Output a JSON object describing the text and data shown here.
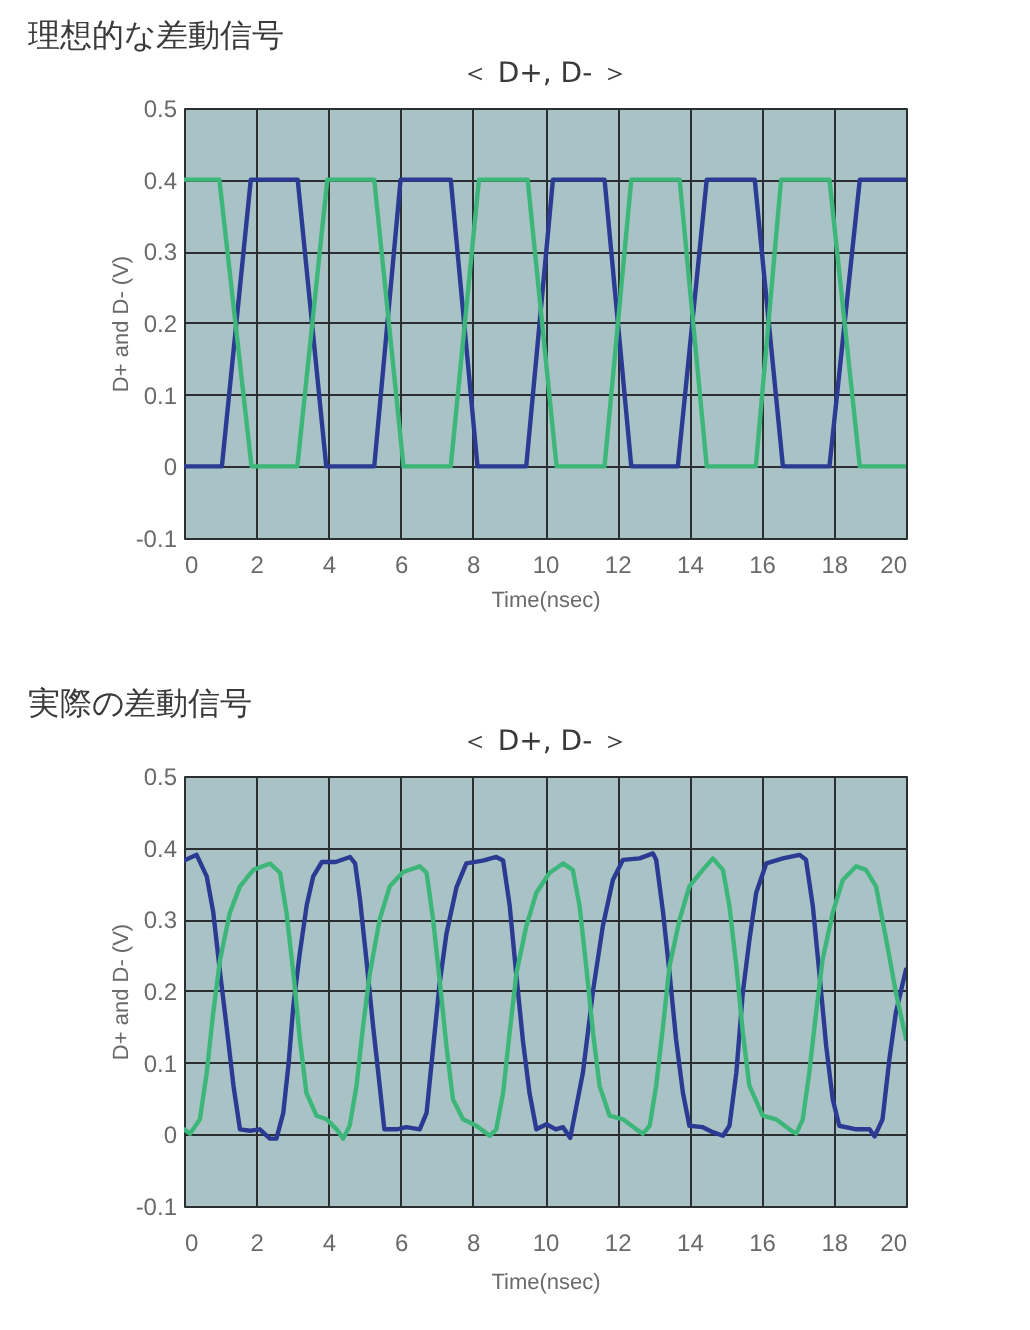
{
  "chart_data": [
    {
      "type": "line",
      "title": "理想的な差動信号",
      "subtitle": "＜ D+, D- ＞",
      "xlabel": "Time(nsec)",
      "ylabel": "D+ and D- (V)",
      "xlim": [
        0,
        20
      ],
      "xticks": [
        0,
        2,
        4,
        6,
        8,
        10,
        12,
        14,
        16,
        18,
        20
      ],
      "ylim": [
        -0.1,
        0.5
      ],
      "yticks": [
        -0.1,
        0,
        0.1,
        0.2,
        0.3,
        0.4,
        0.5
      ],
      "grid": true,
      "series": [
        {
          "color": "#2b3a92",
          "x": [
            0,
            1.05,
            1.85,
            3.15,
            3.94,
            5.27,
            6.0,
            7.39,
            8.13,
            9.48,
            10.22,
            11.65,
            12.39,
            13.68,
            14.48,
            15.81,
            16.59,
            17.88,
            18.72,
            20
          ],
          "values": [
            0,
            0,
            0.4,
            0.4,
            0,
            0,
            0.4,
            0.4,
            0,
            0,
            0.4,
            0.4,
            0,
            0,
            0.4,
            0.4,
            0,
            0,
            0.4,
            0.4
          ]
        },
        {
          "color": "#3cb679",
          "x": [
            0,
            0.98,
            1.87,
            3.14,
            3.97,
            5.27,
            6.08,
            7.39,
            8.17,
            9.52,
            10.32,
            11.65,
            12.39,
            13.73,
            14.48,
            15.84,
            16.54,
            17.88,
            18.72,
            20
          ],
          "values": [
            0.4,
            0.4,
            0,
            0,
            0.4,
            0.4,
            0,
            0,
            0.4,
            0.4,
            0,
            0,
            0.4,
            0.4,
            0,
            0,
            0.4,
            0.4,
            0,
            0
          ]
        }
      ]
    },
    {
      "type": "line",
      "title": "実際の差動信号",
      "subtitle": "＜ D+, D- ＞",
      "xlabel": "Time(nsec)",
      "ylabel": "D+ and D- (V)",
      "xlim": [
        0,
        20
      ],
      "xticks": [
        0,
        2,
        4,
        6,
        8,
        10,
        12,
        14,
        16,
        18,
        20
      ],
      "ylim": [
        -0.1,
        0.5
      ],
      "yticks": [
        -0.1,
        0,
        0.1,
        0.2,
        0.3,
        0.4,
        0.5
      ],
      "grid": true,
      "series": [
        {
          "color": "#2b3a92",
          "x": [
            0,
            0.35,
            0.63,
            0.81,
            1.0,
            1.18,
            1.37,
            1.55,
            1.83,
            2.1,
            2.38,
            2.56,
            2.75,
            2.9,
            3.03,
            3.2,
            3.4,
            3.58,
            3.82,
            4.2,
            4.6,
            4.74,
            4.87,
            5.05,
            5.24,
            5.42,
            5.55,
            5.89,
            6.16,
            6.53,
            6.72,
            6.9,
            7.08,
            7.27,
            7.55,
            7.82,
            8.28,
            8.65,
            8.84,
            9.02,
            9.2,
            9.39,
            9.57,
            9.76,
            10.04,
            10.3,
            10.5,
            10.7,
            11.05,
            11.33,
            11.6,
            11.88,
            12.16,
            12.62,
            12.99,
            13.08,
            13.27,
            13.45,
            13.63,
            13.82,
            14.0,
            14.37,
            14.65,
            14.93,
            15.11,
            15.3,
            15.48,
            15.66,
            15.85,
            16.13,
            16.59,
            17.05,
            17.23,
            17.42,
            17.6,
            17.79,
            17.97,
            18.15,
            18.62,
            18.99,
            19.13,
            19.35,
            19.54,
            19.72,
            20
          ],
          "values": [
            0.382,
            0.39,
            0.36,
            0.31,
            0.225,
            0.15,
            0.068,
            0.007,
            0.005,
            0.007,
            -0.006,
            -0.006,
            0.03,
            0.1,
            0.18,
            0.25,
            0.32,
            0.36,
            0.38,
            0.38,
            0.387,
            0.378,
            0.33,
            0.245,
            0.15,
            0.068,
            0.007,
            0.007,
            0.01,
            0.007,
            0.03,
            0.12,
            0.21,
            0.28,
            0.345,
            0.378,
            0.382,
            0.387,
            0.382,
            0.32,
            0.225,
            0.13,
            0.058,
            0.007,
            0.014,
            0.007,
            0.01,
            -0.005,
            0.086,
            0.2,
            0.29,
            0.355,
            0.383,
            0.385,
            0.392,
            0.383,
            0.31,
            0.225,
            0.133,
            0.058,
            0.012,
            0.01,
            0.003,
            -0.002,
            0.012,
            0.086,
            0.198,
            0.27,
            0.337,
            0.378,
            0.385,
            0.39,
            0.383,
            0.318,
            0.225,
            0.123,
            0.049,
            0.012,
            0.007,
            0.007,
            -0.003,
            0.021,
            0.105,
            0.17,
            0.23
          ]
        },
        {
          "color": "#3cb679",
          "x": [
            0,
            0.17,
            0.44,
            0.63,
            0.81,
            1.0,
            1.27,
            1.55,
            1.92,
            2.38,
            2.66,
            2.84,
            3.03,
            3.21,
            3.39,
            3.67,
            3.95,
            4.23,
            4.41,
            4.59,
            4.78,
            4.96,
            5.15,
            5.42,
            5.7,
            6.07,
            6.53,
            6.72,
            6.9,
            7.08,
            7.27,
            7.45,
            7.73,
            8.1,
            8.47,
            8.65,
            8.84,
            9.02,
            9.21,
            9.48,
            9.76,
            10.13,
            10.5,
            10.77,
            10.96,
            11.14,
            11.33,
            11.51,
            11.79,
            12.16,
            12.53,
            12.71,
            12.9,
            13.08,
            13.27,
            13.45,
            13.73,
            14.0,
            14.37,
            14.65,
            14.93,
            15.11,
            15.3,
            15.48,
            15.66,
            16.03,
            16.4,
            16.77,
            16.96,
            17.14,
            17.32,
            17.51,
            17.69,
            17.97,
            18.25,
            18.62,
            18.89,
            19.17,
            19.45,
            19.72,
            20
          ],
          "values": [
            0.007,
            0.001,
            0.021,
            0.086,
            0.17,
            0.244,
            0.309,
            0.346,
            0.369,
            0.378,
            0.365,
            0.309,
            0.225,
            0.133,
            0.058,
            0.026,
            0.021,
            0.007,
            -0.006,
            0.012,
            0.068,
            0.151,
            0.225,
            0.3,
            0.346,
            0.366,
            0.374,
            0.365,
            0.3,
            0.216,
            0.123,
            0.049,
            0.021,
            0.012,
            -0.002,
            0.007,
            0.058,
            0.142,
            0.225,
            0.29,
            0.337,
            0.365,
            0.378,
            0.369,
            0.318,
            0.235,
            0.142,
            0.068,
            0.026,
            0.021,
            0.007,
            0.001,
            0.012,
            0.068,
            0.151,
            0.235,
            0.3,
            0.346,
            0.369,
            0.385,
            0.369,
            0.318,
            0.235,
            0.142,
            0.068,
            0.026,
            0.021,
            0.007,
            0.001,
            0.021,
            0.086,
            0.17,
            0.244,
            0.309,
            0.355,
            0.374,
            0.369,
            0.346,
            0.272,
            0.198,
            0.133
          ]
        }
      ]
    }
  ]
}
